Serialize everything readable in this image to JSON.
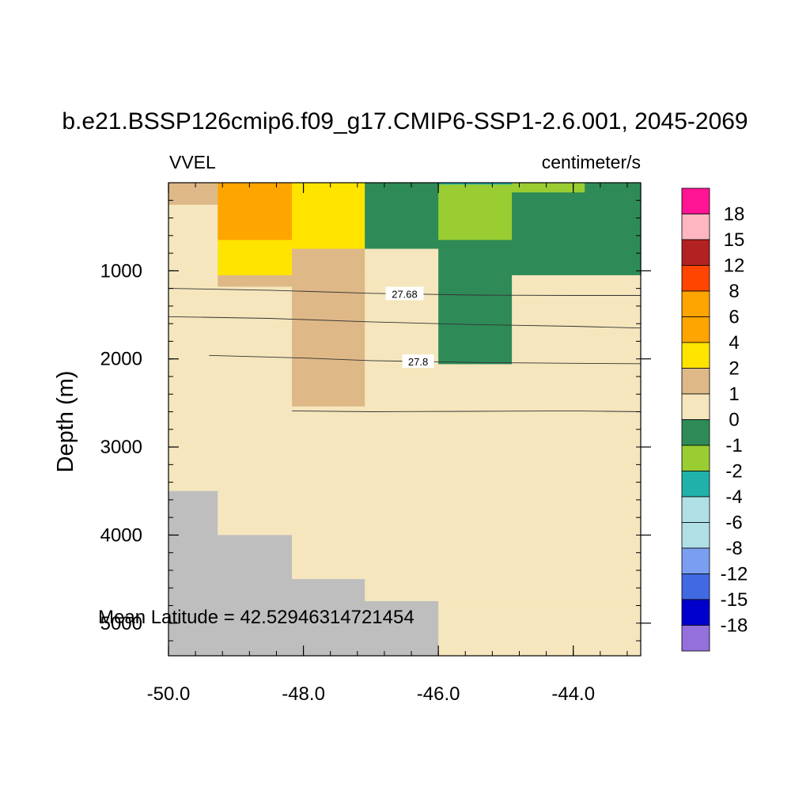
{
  "chart_data": {
    "type": "heatmap",
    "title": "b.e21.BSSP126cmip6.f09_g17.CMIP6-SSP1-2.6.001, 2045-2069",
    "left_label": "VVEL",
    "right_label": "centimeter/s",
    "xlabel": "",
    "ylabel": "Depth (m)",
    "annotation": "Mean Latitude = 42.52946314721454",
    "xlim": [
      -50.0,
      -43.0
    ],
    "ylim": [
      5370,
      0
    ],
    "x_ticks": [
      -50.0,
      -48.0,
      -46.0,
      -44.0
    ],
    "x_tick_labels": [
      "-50.0",
      "-48.0",
      "-46.0",
      "-44.0"
    ],
    "y_ticks": [
      1000,
      2000,
      3000,
      4000,
      5000
    ],
    "y_tick_labels": [
      "1000",
      "2000",
      "3000",
      "4000",
      "5000"
    ],
    "x_edges": [
      -50.0,
      -49.27,
      -48.17,
      -47.09,
      -46.0,
      -44.91,
      -43.83,
      -43.0
    ],
    "depth_edges": [
      0,
      20,
      110,
      250,
      650,
      750,
      1050,
      1180,
      2060,
      2540,
      3500,
      4000,
      4500,
      4750,
      5370
    ],
    "cell_values": [
      [
        1,
        6,
        2,
        -1,
        -4,
        -2,
        -1
      ],
      [
        1,
        6,
        2,
        -1,
        -2,
        -2,
        -1
      ],
      [
        1,
        6,
        2,
        -1,
        -2,
        -1,
        -1
      ],
      [
        0,
        6,
        2,
        -1,
        -2,
        -1,
        -1
      ],
      [
        0,
        2,
        2,
        -1,
        -1,
        -1,
        -1
      ],
      [
        0,
        2,
        1,
        0,
        -1,
        -1,
        -1
      ],
      [
        0,
        1,
        1,
        0,
        -1,
        0,
        0
      ],
      [
        0,
        0,
        1,
        0,
        -1,
        0,
        0
      ],
      [
        0,
        0,
        1,
        0,
        0,
        0,
        0
      ],
      [
        0,
        0,
        0,
        0,
        0,
        0,
        0
      ],
      [
        null,
        0,
        0,
        0,
        0,
        0,
        0
      ],
      [
        null,
        null,
        0,
        0,
        0,
        0,
        0
      ],
      [
        null,
        null,
        null,
        0,
        0,
        0,
        0
      ],
      [
        null,
        null,
        null,
        null,
        0,
        0,
        0
      ],
      [
        null,
        null,
        null,
        null,
        null,
        null,
        null
      ]
    ],
    "missing_color": "#bebebe",
    "colorbar": {
      "labels": [
        "18",
        "15",
        "12",
        "8",
        "6",
        "4",
        "2",
        "1",
        "0",
        "-1",
        "-2",
        "-4",
        "-6",
        "-8",
        "-12",
        "-15",
        "-18"
      ],
      "colors": [
        "#ff1493",
        "#ffb6c1",
        "#b22222",
        "#ff4500",
        "#ffa500",
        "#ffa500",
        "#ffe400",
        "#deb887",
        "#f5e6bd",
        "#2e8b57",
        "#9acd32",
        "#20b2aa",
        "#b0e0e6",
        "#b0e0e6",
        "#7b9ff0",
        "#4169e1",
        "#0000cd",
        "#9370db"
      ],
      "value_colors": {
        "-4": "#20b2aa",
        "-2": "#9acd32",
        "-1": "#2e8b57",
        "0": "#f5e6bd",
        "1": "#deb887",
        "2": "#ffe400",
        "6": "#ffa500"
      }
    },
    "contours": [
      {
        "label": "27.68",
        "label_x": -46.5,
        "points": [
          [
            -50.0,
            1200
          ],
          [
            -48.5,
            1220
          ],
          [
            -47.0,
            1255
          ],
          [
            -45.5,
            1275
          ],
          [
            -44.0,
            1280
          ],
          [
            -43.0,
            1280
          ]
        ]
      },
      {
        "label": "",
        "label_x": null,
        "points": [
          [
            -50.0,
            1520
          ],
          [
            -48.5,
            1540
          ],
          [
            -47.0,
            1580
          ],
          [
            -45.5,
            1610
          ],
          [
            -44.0,
            1630
          ],
          [
            -43.0,
            1650
          ]
        ]
      },
      {
        "label": "27.8",
        "label_x": -46.3,
        "points": [
          [
            -49.4,
            1960
          ],
          [
            -48.0,
            1990
          ],
          [
            -47.0,
            2020
          ],
          [
            -45.5,
            2040
          ],
          [
            -44.0,
            2050
          ],
          [
            -43.0,
            2055
          ]
        ]
      },
      {
        "label": "",
        "label_x": null,
        "points": [
          [
            -48.17,
            2590
          ],
          [
            -47.0,
            2600
          ],
          [
            -45.5,
            2595
          ],
          [
            -44.0,
            2590
          ],
          [
            -43.0,
            2600
          ]
        ]
      }
    ]
  }
}
